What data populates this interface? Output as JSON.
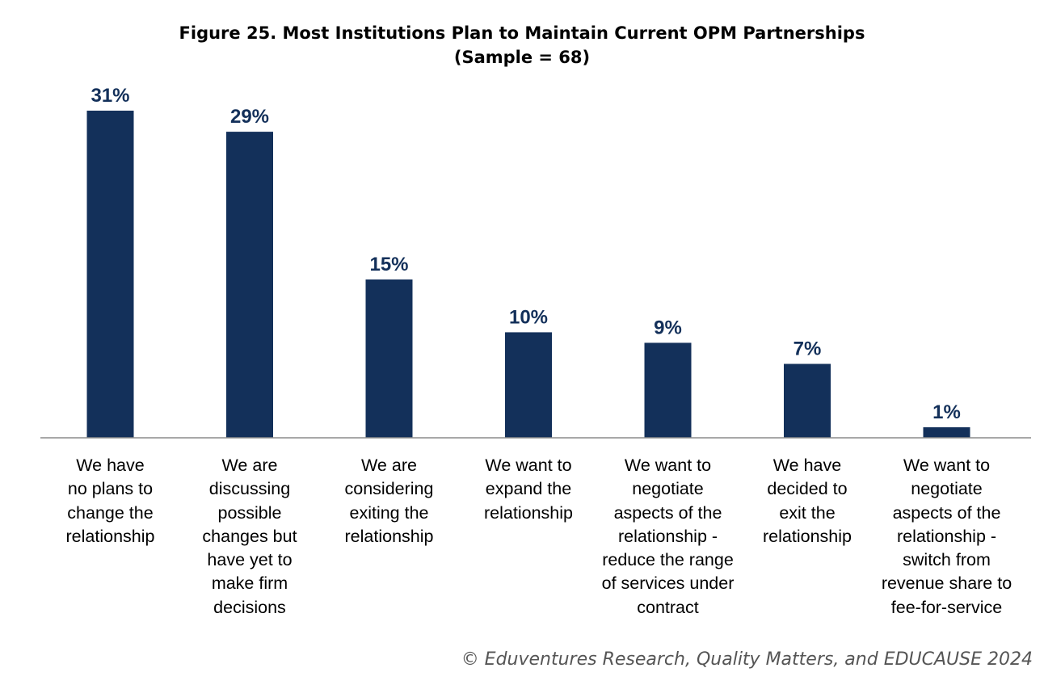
{
  "chart_data": {
    "type": "bar",
    "title": "Figure 25. Most Institutions Plan to Maintain Current OPM Partnerships",
    "subtitle": "(Sample = 68)",
    "categories": [
      "We have no plans to change the relationship",
      "We are discussing possible changes but have yet to make firm decisions",
      "We are considering exiting the relationship",
      "We want to expand the relationship",
      "We want to negotiate aspects of the relationship - reduce the range of services under contract",
      "We have decided to exit the relationship",
      "We want to negotiate aspects of the relationship - switch from revenue share to fee-for-service"
    ],
    "category_lines": [
      [
        "We have",
        "no plans to",
        "change the",
        "relationship"
      ],
      [
        "We are",
        "discussing",
        "possible",
        "changes but",
        "have yet to",
        "make firm",
        "decisions"
      ],
      [
        "We are",
        "considering",
        "exiting the",
        "relationship"
      ],
      [
        "We want to",
        "expand the",
        "relationship"
      ],
      [
        "We want to",
        "negotiate",
        "aspects of the",
        "relationship -",
        "reduce the range",
        "of services under",
        "contract"
      ],
      [
        "We have",
        "decided to",
        "exit the",
        "relationship"
      ],
      [
        "We want to",
        "negotiate",
        "aspects of the",
        "relationship -",
        "switch from",
        "revenue share to",
        "fee-for-service"
      ]
    ],
    "values": [
      31,
      29,
      15,
      10,
      9,
      7,
      1
    ],
    "value_labels": [
      "31%",
      "29%",
      "15%",
      "10%",
      "9%",
      "7%",
      "1%"
    ],
    "unit": "%",
    "ylim": [
      0,
      31
    ],
    "grid": false,
    "legend": "none",
    "bar_color": "#13305a",
    "source": "© Eduventures Research, Quality Matters, and EDUCAUSE 2024"
  }
}
